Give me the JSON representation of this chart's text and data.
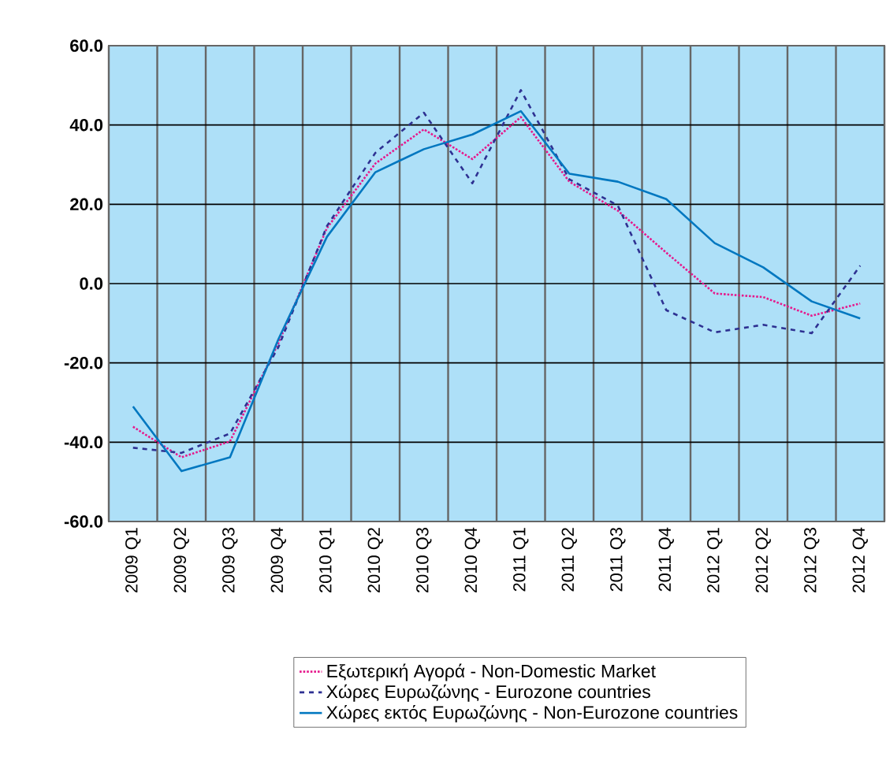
{
  "chart_data": {
    "type": "line",
    "categories": [
      "2009 Q1",
      "2009 Q2",
      "2009 Q3",
      "2009 Q4",
      "2010 Q1",
      "2010 Q2",
      "2010 Q3",
      "2010 Q4",
      "2011 Q1",
      "2011 Q2",
      "2011 Q3",
      "2011 Q4",
      "2012 Q1",
      "2012 Q2",
      "2012 Q3",
      "2012 Q4"
    ],
    "series": [
      {
        "name": "Εξωτερική Αγορά - Non-Domestic Market",
        "color": "#e6198c",
        "line_style": "dotted",
        "values": [
          -36.1,
          -43.8,
          -39.8,
          -15,
          14,
          30.3,
          38.9,
          31.4,
          42,
          25.7,
          18.4,
          7.8,
          -2.5,
          -3.4,
          -8.1,
          -5.0
        ]
      },
      {
        "name": "Χώρες Ευρωζώνης - Eurozone countries",
        "color": "#2e3192",
        "line_style": "dashed",
        "values": [
          -41.4,
          -42.7,
          -37.8,
          -16,
          14.5,
          33,
          43.1,
          25.3,
          48.8,
          26.3,
          19.7,
          -6.7,
          -12.3,
          -10.4,
          -12.5,
          4.5
        ]
      },
      {
        "name": "Χώρες εκτός Ευρωζώνης - Non-Eurozone countries",
        "color": "#0077c0",
        "line_style": "solid",
        "values": [
          -31.0,
          -47.3,
          -43.8,
          -14,
          11.8,
          28.1,
          33.9,
          37.6,
          43.5,
          27.7,
          25.7,
          21.3,
          10.2,
          4.1,
          -4.5,
          -8.8
        ]
      }
    ],
    "ylim": [
      -60,
      60
    ],
    "yticks": [
      {
        "value": -60,
        "label": "-60.0"
      },
      {
        "value": -40,
        "label": "-40.0"
      },
      {
        "value": -20,
        "label": "-20.0"
      },
      {
        "value": 0,
        "label": "0.0"
      },
      {
        "value": 20,
        "label": "20.0"
      },
      {
        "value": 40,
        "label": "40.0"
      },
      {
        "value": 60,
        "label": "60.0"
      }
    ],
    "grid": true,
    "legend": "bottom",
    "marker": "none"
  }
}
